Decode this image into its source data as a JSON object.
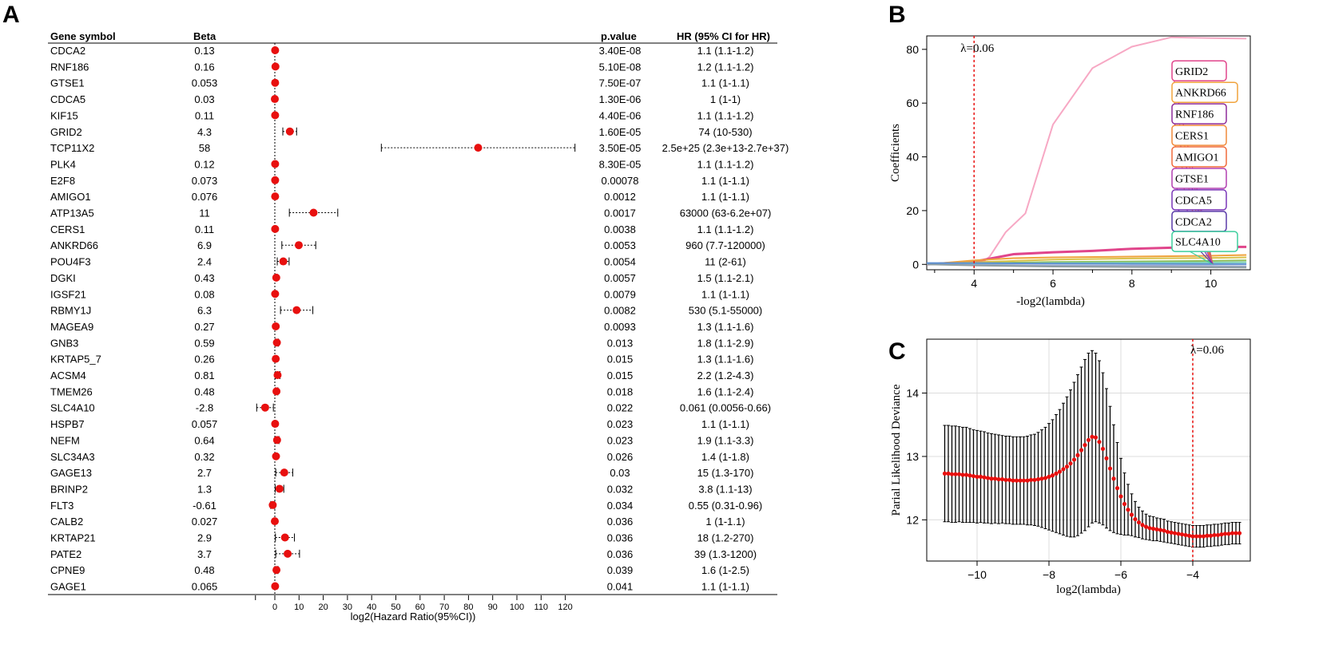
{
  "panels": {
    "a": "A",
    "b": "B",
    "c": "C"
  },
  "chart_data": [
    {
      "type": "forest",
      "columns": {
        "gene": "Gene symbol",
        "beta": "Beta",
        "pvalue": "p.value",
        "hr": "HR (95% CI for HR)"
      },
      "xlabel": "log2(Hazard Ratio(95%CI))",
      "xticks": [
        0,
        10,
        20,
        30,
        40,
        50,
        60,
        70,
        80,
        90,
        100,
        110,
        120
      ],
      "xlim": [
        -2,
        122
      ],
      "rows": [
        {
          "gene": "CDCA2",
          "beta": "0.13",
          "p": "3.40E-08",
          "hr": "1.1 (1.1-1.2)",
          "x": 0.13,
          "lo": 0.13,
          "hi": 0.26
        },
        {
          "gene": "RNF186",
          "beta": "0.16",
          "p": "5.10E-08",
          "hr": "1.2 (1.1-1.2)",
          "x": 0.26,
          "lo": 0.14,
          "hi": 0.26
        },
        {
          "gene": "GTSE1",
          "beta": "0.053",
          "p": "7.50E-07",
          "hr": "1.1 (1-1.1)",
          "x": 0.13,
          "lo": 0,
          "hi": 0.14
        },
        {
          "gene": "CDCA5",
          "beta": "0.03",
          "p": "1.30E-06",
          "hr": "1 (1-1)",
          "x": 0,
          "lo": 0,
          "hi": 0
        },
        {
          "gene": "KIF15",
          "beta": "0.11",
          "p": "4.40E-06",
          "hr": "1.1 (1.1-1.2)",
          "x": 0.13,
          "lo": 0.13,
          "hi": 0.26
        },
        {
          "gene": "GRID2",
          "beta": "4.3",
          "p": "1.60E-05",
          "hr": "74 (10-530)",
          "x": 6.2,
          "lo": 3.3,
          "hi": 9.0
        },
        {
          "gene": "TCP11X2",
          "beta": "58",
          "p": "3.50E-05",
          "hr": "2.5e+25 (2.3e+13-2.7e+37)",
          "x": 84,
          "lo": 44,
          "hi": 124
        },
        {
          "gene": "PLK4",
          "beta": "0.12",
          "p": "8.30E-05",
          "hr": "1.1 (1.1-1.2)",
          "x": 0.13,
          "lo": 0.13,
          "hi": 0.26
        },
        {
          "gene": "E2F8",
          "beta": "0.073",
          "p": "0.00078",
          "hr": "1.1 (1-1.1)",
          "x": 0.13,
          "lo": 0,
          "hi": 0.14
        },
        {
          "gene": "AMIGO1",
          "beta": "0.076",
          "p": "0.0012",
          "hr": "1.1 (1-1.1)",
          "x": 0.13,
          "lo": 0,
          "hi": 0.14
        },
        {
          "gene": "ATP13A5",
          "beta": "11",
          "p": "0.0017",
          "hr": "63000 (63-6.2e+07)",
          "x": 16,
          "lo": 6,
          "hi": 26
        },
        {
          "gene": "CERS1",
          "beta": "0.11",
          "p": "0.0038",
          "hr": "1.1 (1.1-1.2)",
          "x": 0.13,
          "lo": 0.13,
          "hi": 0.26
        },
        {
          "gene": "ANKRD66",
          "beta": "6.9",
          "p": "0.0053",
          "hr": "960 (7.7-120000)",
          "x": 9.9,
          "lo": 2.9,
          "hi": 16.9
        },
        {
          "gene": "POU4F3",
          "beta": "2.4",
          "p": "0.0054",
          "hr": "11 (2-61)",
          "x": 3.5,
          "lo": 1,
          "hi": 5.9
        },
        {
          "gene": "DGKI",
          "beta": "0.43",
          "p": "0.0057",
          "hr": "1.5 (1.1-2.1)",
          "x": 0.6,
          "lo": 0.14,
          "hi": 1.07
        },
        {
          "gene": "IGSF21",
          "beta": "0.08",
          "p": "0.0079",
          "hr": "1.1 (1-1.1)",
          "x": 0.13,
          "lo": 0,
          "hi": 0.14
        },
        {
          "gene": "RBMY1J",
          "beta": "6.3",
          "p": "0.0082",
          "hr": "530 (5.1-55000)",
          "x": 9.0,
          "lo": 2.35,
          "hi": 15.7
        },
        {
          "gene": "MAGEA9",
          "beta": "0.27",
          "p": "0.0093",
          "hr": "1.3 (1.1-1.6)",
          "x": 0.38,
          "lo": 0.14,
          "hi": 0.68
        },
        {
          "gene": "GNB3",
          "beta": "0.59",
          "p": "0.013",
          "hr": "1.8 (1.1-2.9)",
          "x": 0.85,
          "lo": 0.14,
          "hi": 1.54
        },
        {
          "gene": "KRTAP5_7",
          "beta": "0.26",
          "p": "0.015",
          "hr": "1.3 (1.1-1.6)",
          "x": 0.38,
          "lo": 0.14,
          "hi": 0.68
        },
        {
          "gene": "ACSM4",
          "beta": "0.81",
          "p": "0.015",
          "hr": "2.2 (1.2-4.3)",
          "x": 1.14,
          "lo": 0.26,
          "hi": 2.1
        },
        {
          "gene": "TMEM26",
          "beta": "0.48",
          "p": "0.018",
          "hr": "1.6 (1.1-2.4)",
          "x": 0.68,
          "lo": 0.14,
          "hi": 1.26
        },
        {
          "gene": "SLC4A10",
          "beta": "-2.8",
          "p": "0.022",
          "hr": "0.061 (0.0056-0.66)",
          "x": -4.0,
          "lo": -7.5,
          "hi": -0.6
        },
        {
          "gene": "HSPB7",
          "beta": "0.057",
          "p": "0.023",
          "hr": "1.1 (1-1.1)",
          "x": 0.13,
          "lo": 0,
          "hi": 0.14
        },
        {
          "gene": "NEFM",
          "beta": "0.64",
          "p": "0.023",
          "hr": "1.9 (1.1-3.3)",
          "x": 0.93,
          "lo": 0.14,
          "hi": 1.72
        },
        {
          "gene": "SLC34A3",
          "beta": "0.32",
          "p": "0.026",
          "hr": "1.4 (1-1.8)",
          "x": 0.49,
          "lo": 0,
          "hi": 0.85
        },
        {
          "gene": "GAGE13",
          "beta": "2.7",
          "p": "0.03",
          "hr": "15 (1.3-170)",
          "x": 3.9,
          "lo": 0.38,
          "hi": 7.4
        },
        {
          "gene": "BRINP2",
          "beta": "1.3",
          "p": "0.032",
          "hr": "3.8 (1.1-13)",
          "x": 1.93,
          "lo": 0.14,
          "hi": 3.7
        },
        {
          "gene": "FLT3",
          "beta": "-0.61",
          "p": "0.034",
          "hr": "0.55 (0.31-0.96)",
          "x": -0.86,
          "lo": -1.69,
          "hi": -0.06
        },
        {
          "gene": "CALB2",
          "beta": "0.027",
          "p": "0.036",
          "hr": "1 (1-1.1)",
          "x": 0,
          "lo": 0,
          "hi": 0.14
        },
        {
          "gene": "KRTAP21",
          "beta": "2.9",
          "p": "0.036",
          "hr": "18 (1.2-270)",
          "x": 4.2,
          "lo": 0.26,
          "hi": 8.1
        },
        {
          "gene": "PATE2",
          "beta": "3.7",
          "p": "0.036",
          "hr": "39 (1.3-1200)",
          "x": 5.3,
          "lo": 0.38,
          "hi": 10.2
        },
        {
          "gene": "CPNE9",
          "beta": "0.48",
          "p": "0.039",
          "hr": "1.6 (1-2.5)",
          "x": 0.68,
          "lo": 0,
          "hi": 1.32
        },
        {
          "gene": "GAGE1",
          "beta": "0.065",
          "p": "0.041",
          "hr": "1.1 (1-1.1)",
          "x": 0.13,
          "lo": 0,
          "hi": 0.14
        }
      ]
    },
    {
      "type": "line",
      "xlabel": "-log2(lambda)",
      "ylabel": "Coefficients",
      "xlim": [
        2.8,
        11
      ],
      "ylim": [
        -2,
        85
      ],
      "xticks": [
        4,
        6,
        8,
        10
      ],
      "yticks": [
        0,
        20,
        40,
        60,
        80
      ],
      "annotation": "λ=0.06",
      "vline_x": 4,
      "series": [
        {
          "color": "#f7a8c4",
          "x": [
            2.8,
            4.2,
            4.4,
            4.8,
            5.3,
            6,
            7,
            8,
            9,
            10,
            10.9
          ],
          "y": [
            0,
            0.5,
            3,
            12,
            19,
            52,
            73,
            81,
            84.5,
            84.2,
            84
          ]
        },
        {
          "color": "#e0458b",
          "x": [
            2.8,
            4,
            5,
            6,
            7,
            8,
            9,
            10,
            10.9
          ],
          "y": [
            0,
            1,
            3.8,
            4.5,
            5,
            5.8,
            6.2,
            6.5,
            6.5
          ]
        },
        {
          "color": "#f0a33c",
          "x": [
            2.8,
            4,
            5,
            6,
            8,
            10,
            10.9
          ],
          "y": [
            0,
            1.5,
            2.3,
            2.6,
            2.9,
            3.2,
            3.5
          ]
        },
        {
          "color": "#d9c24c",
          "x": [
            2.8,
            4,
            6,
            8,
            10,
            10.9
          ],
          "y": [
            0,
            0.8,
            1.8,
            2.2,
            2.4,
            2.6
          ]
        },
        {
          "color": "#8fbf5a",
          "x": [
            2.8,
            4,
            6,
            8,
            10,
            10.9
          ],
          "y": [
            0,
            0.4,
            0.9,
            1.1,
            1.3,
            1.5
          ]
        },
        {
          "color": "#7fd1b9",
          "x": [
            2.8,
            4,
            6,
            8,
            10,
            10.9
          ],
          "y": [
            0,
            0.2,
            0.5,
            0.6,
            0.7,
            0.8
          ]
        },
        {
          "color": "#9aa7c9",
          "x": [
            2.8,
            4,
            6,
            8,
            10,
            10.9
          ],
          "y": [
            0,
            -0.2,
            -0.4,
            -0.5,
            -0.6,
            -0.7
          ]
        },
        {
          "color": "#8e9ea3",
          "x": [
            2.8,
            4,
            6,
            8,
            10,
            10.9
          ],
          "y": [
            0,
            -0.4,
            -0.8,
            -1.0,
            -1.1,
            -1.2
          ]
        },
        {
          "color": "#5b8fd1",
          "x": [
            2.8,
            4,
            6,
            8,
            10,
            10.9
          ],
          "y": [
            0.5,
            0.5,
            0.3,
            0.2,
            0.1,
            0.1
          ]
        }
      ],
      "labels": [
        {
          "text": "GRID2",
          "color": "#e0458b",
          "y": 72
        },
        {
          "text": "ANKRD66",
          "color": "#f0a33c",
          "y": 64
        },
        {
          "text": "RNF186",
          "color": "#8e2b9a",
          "y": 56
        },
        {
          "text": "CERS1",
          "color": "#f08a3a",
          "y": 48
        },
        {
          "text": "AMIGO1",
          "color": "#f06a3a",
          "y": 40
        },
        {
          "text": "GTSE1",
          "color": "#b23fb0",
          "y": 32
        },
        {
          "text": "CDCA5",
          "color": "#7a36b8",
          "y": 24
        },
        {
          "text": "CDCA2",
          "color": "#5a3aa8",
          "y": 16
        },
        {
          "text": "SLC4A10",
          "color": "#3ecf9e",
          "y": 8.5
        }
      ]
    },
    {
      "type": "scatter",
      "xlabel": "log2(lambda)",
      "ylabel": "Parial Likelihood Deviance",
      "xlim": [
        -11.4,
        -2.4
      ],
      "ylim": [
        11.35,
        14.85
      ],
      "xticks": [
        -10,
        -8,
        -6,
        -4
      ],
      "yticks": [
        12,
        13,
        14
      ],
      "annotation": "λ=0.06",
      "vline_x": -4,
      "x_start": -10.9,
      "x_step": 0.1,
      "y": [
        12.73,
        12.73,
        12.72,
        12.72,
        12.72,
        12.71,
        12.71,
        12.7,
        12.69,
        12.68,
        12.68,
        12.67,
        12.66,
        12.65,
        12.65,
        12.64,
        12.64,
        12.63,
        12.63,
        12.62,
        12.62,
        12.62,
        12.62,
        12.62,
        12.63,
        12.63,
        12.64,
        12.65,
        12.66,
        12.68,
        12.7,
        12.73,
        12.76,
        12.8,
        12.84,
        12.89,
        12.95,
        13.02,
        13.1,
        13.18,
        13.26,
        13.31,
        13.3,
        13.23,
        13.12,
        12.97,
        12.81,
        12.65,
        12.5,
        12.37,
        12.25,
        12.16,
        12.08,
        12.01,
        11.96,
        11.92,
        11.89,
        11.87,
        11.86,
        11.85,
        11.84,
        11.83,
        11.81,
        11.8,
        11.79,
        11.78,
        11.77,
        11.76,
        11.75,
        11.74,
        11.74,
        11.74,
        11.74,
        11.75,
        11.75,
        11.76,
        11.76,
        11.77,
        11.78,
        11.78,
        11.79,
        11.79,
        11.79
      ],
      "err": [
        0.76,
        0.76,
        0.76,
        0.76,
        0.75,
        0.75,
        0.75,
        0.74,
        0.73,
        0.73,
        0.72,
        0.72,
        0.71,
        0.71,
        0.7,
        0.7,
        0.69,
        0.69,
        0.69,
        0.69,
        0.69,
        0.69,
        0.69,
        0.7,
        0.71,
        0.72,
        0.74,
        0.77,
        0.8,
        0.84,
        0.88,
        0.93,
        0.98,
        1.04,
        1.1,
        1.16,
        1.22,
        1.27,
        1.31,
        1.35,
        1.37,
        1.36,
        1.33,
        1.28,
        1.2,
        1.1,
        0.98,
        0.85,
        0.72,
        0.6,
        0.49,
        0.4,
        0.33,
        0.28,
        0.24,
        0.22,
        0.2,
        0.19,
        0.19,
        0.18,
        0.18,
        0.18,
        0.17,
        0.17,
        0.17,
        0.17,
        0.17,
        0.17,
        0.17,
        0.17,
        0.17,
        0.17,
        0.17,
        0.17,
        0.17,
        0.17,
        0.17,
        0.17,
        0.17,
        0.17,
        0.17,
        0.17,
        0.17
      ]
    }
  ]
}
